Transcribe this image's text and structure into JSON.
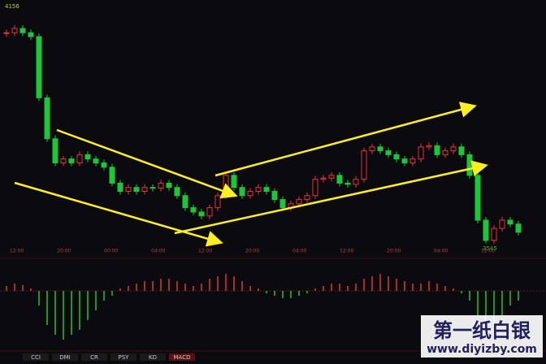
{
  "chart_data": {
    "type": "candlestick",
    "high_label": "4156",
    "low_label": "3545",
    "ylim": [
      3510,
      4173
    ],
    "close": [
      4089,
      4100,
      4089,
      4079,
      3922,
      3817,
      3755,
      3765,
      3755,
      3776,
      3765,
      3755,
      3744,
      3703,
      3682,
      3692,
      3682,
      3692,
      3690,
      3703,
      3692,
      3671,
      3640,
      3629,
      3619,
      3640,
      3671,
      3723,
      3692,
      3671,
      3682,
      3692,
      3682,
      3661,
      3640,
      3650,
      3661,
      3671,
      3713,
      3716,
      3723,
      3703,
      3700,
      3713,
      3786,
      3796,
      3786,
      3776,
      3765,
      3755,
      3765,
      3796,
      3799,
      3776,
      3786,
      3796,
      3776,
      3723,
      3608,
      3556,
      3587,
      3608,
      3598,
      3577
    ],
    "up_color": "#e8323c",
    "down_color": "#1fc43a",
    "times": [
      "12:00",
      "20:00",
      "00:00",
      "04:00",
      "12:00",
      "20:00",
      "04:00",
      "12:00",
      "20:00",
      "04:00",
      "12:00"
    ],
    "macd": {
      "ylim": [
        -12,
        6
      ],
      "values": [
        1,
        1.5,
        1.2,
        0.5,
        -3,
        -7,
        -9,
        -10,
        -9,
        -8,
        -6,
        -4,
        -2,
        -1,
        0.5,
        1,
        1.5,
        2,
        2,
        2.5,
        2.5,
        2,
        1.5,
        1,
        1.5,
        2.5,
        3,
        3.5,
        3,
        2,
        1,
        0.5,
        -0.5,
        -1,
        -1.5,
        -1.5,
        -1,
        -0.5,
        0.5,
        1,
        1.5,
        1.5,
        1,
        1.5,
        2.5,
        3,
        3.5,
        3,
        2.5,
        2,
        1.5,
        1.5,
        2,
        1.5,
        1,
        0.5,
        -0.5,
        -2,
        -5,
        -8,
        -7,
        -5,
        -3,
        -2
      ]
    },
    "tabs": [
      "CCI",
      "DMI",
      "CR",
      "PSY",
      "KD",
      "MACD"
    ],
    "watermark": {
      "title": "第一纸白银",
      "url": "www.diyizby.com"
    }
  }
}
